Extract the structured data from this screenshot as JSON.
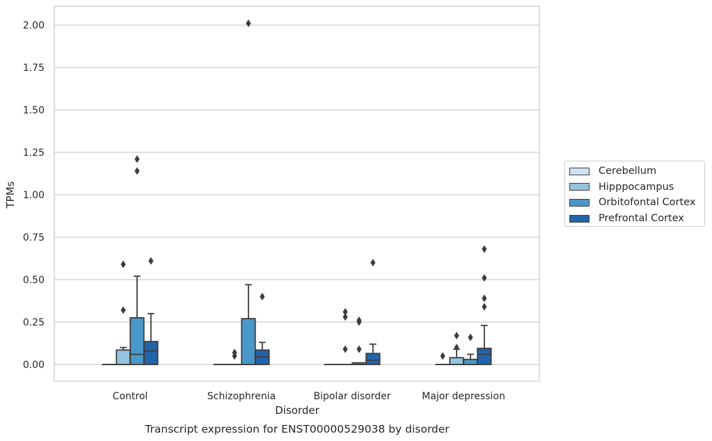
{
  "chart_data": {
    "type": "box",
    "caption": "Transcript expression for ENST00000529038 by disorder",
    "xlabel": "Disorder",
    "ylabel": "TPMs",
    "ylim": [
      -0.1,
      2.1
    ],
    "yticks": [
      "0.00",
      "0.25",
      "0.50",
      "0.75",
      "1.00",
      "1.25",
      "1.50",
      "1.75",
      "2.00"
    ],
    "categories": [
      "Control",
      "Schizophrenia",
      "Bipolar disorder",
      "Major depression"
    ],
    "grid": true,
    "legend_position": "right",
    "series": [
      {
        "name": "Cerebellum",
        "color": "#d0e1f2",
        "boxes": [
          {
            "q1": 0,
            "median": 0,
            "q3": 0,
            "whisker_low": 0,
            "whisker_high": 0,
            "outliers": []
          },
          {
            "q1": 0,
            "median": 0,
            "q3": 0,
            "whisker_low": 0,
            "whisker_high": 0,
            "outliers": []
          },
          {
            "q1": 0,
            "median": 0,
            "q3": 0,
            "whisker_low": 0,
            "whisker_high": 0,
            "outliers": []
          },
          {
            "q1": 0,
            "median": 0,
            "q3": 0,
            "whisker_low": 0,
            "whisker_high": 0,
            "outliers": [
              0.05
            ]
          }
        ]
      },
      {
        "name": "Hipppocampus",
        "color": "#94c4df",
        "boxes": [
          {
            "q1": 0,
            "median": 0,
            "q3": 0.085,
            "whisker_low": 0,
            "whisker_high": 0.1,
            "outliers": [
              0.32,
              0.59
            ]
          },
          {
            "q1": 0,
            "median": 0,
            "q3": 0,
            "whisker_low": 0,
            "whisker_high": 0,
            "outliers": [
              0.05,
              0.07
            ]
          },
          {
            "q1": 0,
            "median": 0,
            "q3": 0,
            "whisker_low": 0,
            "whisker_high": 0,
            "outliers": [
              0.09,
              0.28,
              0.31
            ]
          },
          {
            "q1": 0,
            "median": 0,
            "q3": 0.04,
            "whisker_low": 0,
            "whisker_high": 0.09,
            "outliers": [
              0.1,
              0.17
            ]
          }
        ]
      },
      {
        "name": "Orbitofontal Cortex",
        "color": "#4a98c9",
        "boxes": [
          {
            "q1": 0,
            "median": 0.06,
            "q3": 0.275,
            "whisker_low": 0,
            "whisker_high": 0.52,
            "outliers": [
              1.14,
              1.21
            ]
          },
          {
            "q1": 0,
            "median": 0,
            "q3": 0.27,
            "whisker_low": 0,
            "whisker_high": 0.47,
            "outliers": [
              2.01
            ]
          },
          {
            "q1": 0,
            "median": 0,
            "q3": 0.01,
            "whisker_low": 0,
            "whisker_high": 0.01,
            "outliers": [
              0.09,
              0.25,
              0.26
            ]
          },
          {
            "q1": 0,
            "median": 0,
            "q3": 0.03,
            "whisker_low": 0,
            "whisker_high": 0.06,
            "outliers": [
              0.16
            ]
          }
        ]
      },
      {
        "name": "Prefrontal Cortex",
        "color": "#2164ab",
        "boxes": [
          {
            "q1": 0,
            "median": 0.08,
            "q3": 0.135,
            "whisker_low": 0,
            "whisker_high": 0.3,
            "outliers": [
              0.61
            ]
          },
          {
            "q1": 0,
            "median": 0.045,
            "q3": 0.085,
            "whisker_low": 0,
            "whisker_high": 0.13,
            "outliers": [
              0.4
            ]
          },
          {
            "q1": 0,
            "median": 0.025,
            "q3": 0.065,
            "whisker_low": 0,
            "whisker_high": 0.12,
            "outliers": [
              0.6
            ]
          },
          {
            "q1": 0,
            "median": 0.06,
            "q3": 0.095,
            "whisker_low": 0,
            "whisker_high": 0.23,
            "outliers": [
              0.34,
              0.39,
              0.51,
              0.68
            ]
          }
        ]
      }
    ]
  }
}
